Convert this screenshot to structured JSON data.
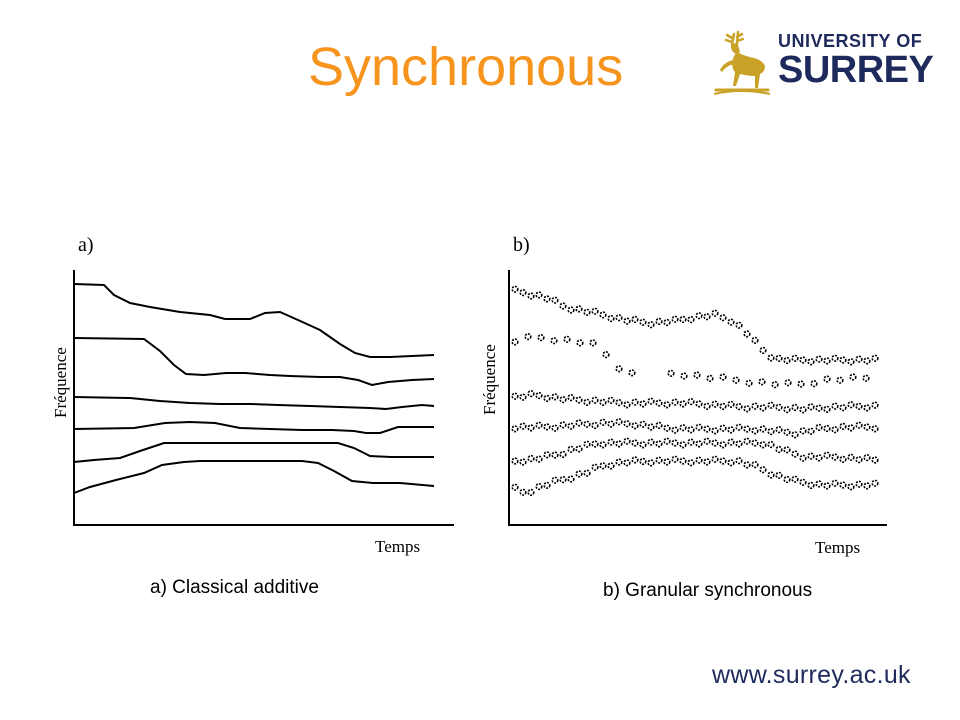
{
  "slide": {
    "title": "Synchronous",
    "logo": {
      "line1": "UNIVERSITY OF",
      "line2": "SURREY",
      "icon": "stag-icon"
    },
    "url": "www.surrey.ac.uk",
    "colors": {
      "title": "#f7941d",
      "brand_navy": "#1f2a5c",
      "brand_gold": "#c9a227"
    }
  },
  "figure_a": {
    "panel_label": "a)",
    "y_axis_label": "Fréquence",
    "x_axis_label": "Temps",
    "caption": "a) Classical additive",
    "style": "continuous partial tracks"
  },
  "figure_b": {
    "panel_label": "b)",
    "y_axis_label": "Fréquence",
    "x_axis_label": "Temps",
    "caption": "b) Granular synchronous",
    "style": "grains (dots) along partial tracks"
  }
}
